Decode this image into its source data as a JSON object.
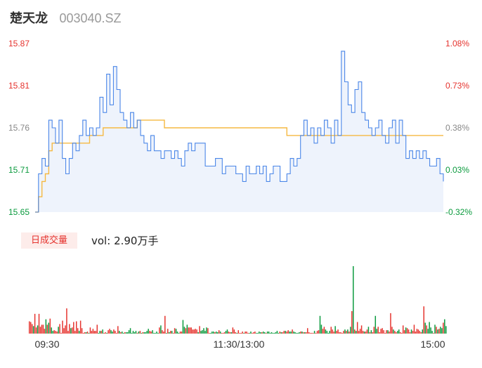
{
  "header": {
    "stock_name": "楚天龙",
    "stock_code": "003040.SZ"
  },
  "volume_panel": {
    "tag_label": "日成交量",
    "vol_prefix": "vol:",
    "vol_value": "2.90万手"
  },
  "colors": {
    "price_line": "#4a86e8",
    "price_fill": "#eef3fc",
    "avg_line": "#f5b942",
    "up": "#e5322d",
    "down": "#0a9a3d",
    "flat": "#888888"
  },
  "chart_data": {
    "type": "line",
    "title": "",
    "xlabel": "",
    "ylabel": "",
    "ylim": [
      15.65,
      15.87
    ],
    "y_right_ticks": [
      "1.08%",
      "0.73%",
      "0.38%",
      "0.03%",
      "-0.32%"
    ],
    "y_left_ticks": [
      "15.87",
      "15.81",
      "15.76",
      "15.71",
      "15.65"
    ],
    "x_ticks": [
      "09:30",
      "11:30/13:00",
      "15:00"
    ],
    "prev_close": 15.705,
    "x": [
      0,
      2,
      4,
      6,
      8,
      10,
      12,
      14,
      16,
      18,
      20,
      22,
      24,
      26,
      28,
      30,
      32,
      34,
      36,
      38,
      40,
      42,
      44,
      46,
      48,
      50,
      52,
      54,
      56,
      58,
      60,
      62,
      64,
      66,
      68,
      70,
      72,
      74,
      76,
      78,
      80,
      82,
      84,
      86,
      88,
      90,
      92,
      94,
      96,
      98,
      100,
      102,
      104,
      106,
      108,
      110,
      112,
      114,
      116,
      118,
      120,
      122,
      124,
      126,
      128,
      130,
      132,
      134,
      136,
      138,
      140,
      142,
      144,
      146,
      148,
      150,
      152,
      154,
      156,
      158,
      160,
      162,
      164,
      166,
      168,
      170,
      172,
      174,
      176,
      178,
      180,
      182,
      184,
      186,
      188,
      190,
      192,
      194,
      196,
      198,
      200,
      202,
      204,
      206,
      208,
      210,
      212,
      214,
      216,
      218,
      220,
      222,
      224,
      226,
      228,
      230,
      232,
      234,
      236,
      238,
      240
    ],
    "series": [
      {
        "values": [
          15.65,
          15.7,
          15.72,
          15.71,
          15.77,
          15.76,
          15.74,
          15.77,
          15.72,
          15.7,
          15.72,
          15.74,
          15.73,
          15.75,
          15.77,
          15.75,
          15.76,
          15.75,
          15.76,
          15.8,
          15.78,
          15.83,
          15.79,
          15.84,
          15.81,
          15.78,
          15.77,
          15.76,
          15.78,
          15.76,
          15.77,
          15.75,
          15.74,
          15.73,
          15.75,
          15.73,
          15.73,
          15.72,
          15.73,
          15.73,
          15.72,
          15.73,
          15.72,
          15.71,
          15.73,
          15.74,
          15.73,
          15.74,
          15.74,
          15.74,
          15.71,
          15.71,
          15.71,
          15.72,
          15.72,
          15.7,
          15.71,
          15.71,
          15.71,
          15.7,
          15.7,
          15.69,
          15.71,
          15.7,
          15.7,
          15.71,
          15.7,
          15.71,
          15.69,
          15.7,
          15.71,
          15.71,
          15.69,
          15.69,
          15.7,
          15.72,
          15.71,
          15.72,
          15.75,
          15.77,
          15.75,
          15.76,
          15.74,
          15.76,
          15.75,
          15.77,
          15.76,
          15.74,
          15.77,
          15.75,
          15.86,
          15.82,
          15.79,
          15.78,
          15.81,
          15.82,
          15.78,
          15.77,
          15.76,
          15.75,
          15.76,
          15.77,
          15.75,
          15.74,
          15.76,
          15.77,
          15.74,
          15.77,
          15.75,
          15.72,
          15.73,
          15.72,
          15.73,
          15.72,
          15.73,
          15.72,
          15.71,
          15.71,
          15.72,
          15.7,
          15.69
        ]
      },
      {
        "values": [
          15.65,
          15.67,
          15.69,
          15.7,
          15.73,
          15.74,
          15.74,
          15.74,
          15.74,
          15.74,
          15.74,
          15.74,
          15.74,
          15.74,
          15.74,
          15.74,
          15.75,
          15.75,
          15.75,
          15.75,
          15.76,
          15.76,
          15.76,
          15.76,
          15.76,
          15.76,
          15.76,
          15.76,
          15.76,
          15.76,
          15.77,
          15.77,
          15.77,
          15.77,
          15.77,
          15.77,
          15.77,
          15.77,
          15.76,
          15.76,
          15.76,
          15.76,
          15.76,
          15.76,
          15.76,
          15.76,
          15.76,
          15.76,
          15.76,
          15.76,
          15.76,
          15.76,
          15.76,
          15.76,
          15.76,
          15.76,
          15.76,
          15.76,
          15.76,
          15.76,
          15.76,
          15.76,
          15.76,
          15.76,
          15.76,
          15.76,
          15.76,
          15.76,
          15.76,
          15.76,
          15.76,
          15.76,
          15.76,
          15.76,
          15.75,
          15.75,
          15.75,
          15.75,
          15.75,
          15.75,
          15.75,
          15.75,
          15.75,
          15.75,
          15.75,
          15.75,
          15.75,
          15.75,
          15.75,
          15.75,
          15.75,
          15.75,
          15.75,
          15.75,
          15.75,
          15.75,
          15.75,
          15.75,
          15.75,
          15.75,
          15.75,
          15.75,
          15.75,
          15.75,
          15.75,
          15.75,
          15.75,
          15.75,
          15.75,
          15.75,
          15.75,
          15.75,
          15.75,
          15.75,
          15.75,
          15.75,
          15.75,
          15.75,
          15.75,
          15.75,
          15.75
        ]
      }
    ],
    "volume": {
      "ylim": [
        0,
        100
      ],
      "values": [
        18,
        17,
        14,
        11,
        29,
        9,
        12,
        29,
        10,
        13,
        13,
        7,
        21,
        13,
        16,
        22,
        9,
        4,
        5,
        4,
        3,
        10,
        14,
        1,
        19,
        8,
        12,
        37,
        4,
        14,
        8,
        9,
        17,
        4,
        18,
        8,
        4,
        19,
        8,
        1,
        2,
        2,
        3,
        1,
        9,
        4,
        7,
        4,
        4,
        13,
        1,
        4,
        4,
        6,
        1,
        2,
        1,
        5,
        7,
        5,
        3,
        6,
        4,
        1,
        11,
        4,
        2,
        3,
        1,
        2,
        2,
        2,
        5,
        8,
        1,
        4,
        2,
        4,
        1,
        3,
        4,
        1,
        2,
        2,
        2,
        4,
        7,
        4,
        3,
        5,
        1,
        1,
        3,
        1,
        9,
        12,
        5,
        3,
        26,
        1,
        7,
        2,
        4,
        4,
        1,
        8,
        7,
        3,
        1,
        3,
        3,
        20,
        10,
        8,
        13,
        9,
        9,
        9,
        6,
        6,
        7,
        6,
        2,
        11,
        4,
        5,
        8,
        4,
        9,
        8,
        1,
        1,
        3,
        3,
        2,
        3,
        2,
        5,
        3,
        1,
        1,
        2,
        4,
        6,
        3,
        2,
        2,
        9,
        6,
        2,
        1,
        5,
        1,
        1,
        3,
        1,
        3,
        3,
        1,
        1,
        3,
        1,
        2,
        3,
        1,
        1,
        3,
        2,
        2,
        3,
        2,
        1,
        3,
        3,
        1,
        2,
        1,
        1,
        2,
        4,
        1,
        3,
        2,
        2,
        4,
        4,
        3,
        5,
        3,
        3,
        6,
        3,
        2,
        1,
        1,
        2,
        3,
        3,
        2,
        2,
        2,
        8,
        2,
        1,
        1,
        1,
        4,
        1,
        4,
        5,
        26,
        13,
        7,
        10,
        6,
        4,
        1,
        4,
        10,
        6,
        3,
        11,
        4,
        6,
        2,
        2,
        1,
        4,
        6,
        4,
        6,
        3,
        10,
        33,
        99,
        6,
        4,
        17,
        4,
        7,
        12,
        4,
        3,
        3,
        6,
        10,
        2,
        5,
        2,
        10,
        26,
        7,
        10,
        2,
        7,
        8,
        5,
        1,
        5,
        5,
        3,
        30,
        10,
        6,
        4,
        2,
        4,
        6,
        2,
        1,
        12,
        5,
        9,
        8,
        6,
        2,
        6,
        4,
        13,
        3,
        7,
        6,
        4,
        2,
        6,
        40,
        16,
        12,
        7,
        17,
        9,
        4,
        1,
        13,
        10,
        6,
        7,
        10,
        8,
        16,
        21,
        11
      ],
      "directions": [
        "up",
        "up",
        "up",
        "down",
        "up",
        "up",
        "down",
        "up",
        "up",
        "up",
        "up",
        "up",
        "down",
        "up",
        "down",
        "up",
        "down",
        "down",
        "up",
        "up",
        "up",
        "down",
        "up",
        "up",
        "up",
        "up",
        "up",
        "up",
        "up",
        "up",
        "down",
        "up",
        "up",
        "up",
        "up",
        "up",
        "down",
        "up",
        "up",
        "up",
        "up",
        "down",
        "up",
        "down",
        "up",
        "up",
        "up",
        "up",
        "up",
        "up",
        "down",
        "down",
        "up",
        "down",
        "up",
        "up",
        "down",
        "up",
        "up",
        "down",
        "down",
        "up",
        "up",
        "up",
        "up",
        "down",
        "up",
        "down",
        "down",
        "up",
        "down",
        "down",
        "down",
        "down",
        "down",
        "down",
        "down",
        "down",
        "up",
        "down",
        "up",
        "down",
        "up",
        "down",
        "down",
        "down",
        "down",
        "up",
        "up",
        "down",
        "down",
        "down",
        "down",
        "down",
        "up",
        "down",
        "up",
        "up",
        "up",
        "down",
        "up",
        "down",
        "up",
        "down",
        "up",
        "up",
        "down",
        "down",
        "down",
        "up",
        "up",
        "down",
        "down",
        "up",
        "down",
        "up",
        "up",
        "up",
        "up",
        "up",
        "up",
        "up",
        "down",
        "up",
        "down",
        "down",
        "down",
        "down",
        "down",
        "up",
        "up",
        "down",
        "down",
        "down",
        "up",
        "down",
        "down",
        "up",
        "down",
        "up",
        "up",
        "up",
        "down",
        "down",
        "up",
        "up",
        "down",
        "up",
        "up",
        "up",
        "down",
        "up",
        "up",
        "up",
        "up",
        "down",
        "up",
        "up",
        "up",
        "down",
        "down",
        "up",
        "up",
        "up",
        "down",
        "down",
        "down",
        "down",
        "up",
        "down",
        "down",
        "up",
        "down",
        "down",
        "down",
        "down",
        "down",
        "down",
        "down",
        "down",
        "down",
        "up",
        "down",
        "up",
        "up",
        "down",
        "up",
        "up",
        "down",
        "down",
        "up",
        "down",
        "down",
        "down",
        "down",
        "down",
        "up",
        "down",
        "up",
        "down",
        "up",
        "up",
        "up",
        "up",
        "up",
        "up",
        "down",
        "up",
        "up",
        "up",
        "down",
        "down",
        "up",
        "up",
        "down",
        "down",
        "down",
        "down",
        "up",
        "up",
        "up",
        "down",
        "up",
        "up",
        "up",
        "up",
        "up",
        "up",
        "down",
        "up",
        "down",
        "up",
        "down",
        "up",
        "down",
        "up",
        "down",
        "up",
        "up",
        "up",
        "up",
        "up",
        "down",
        "up",
        "up",
        "down",
        "up",
        "down",
        "up",
        "up",
        "down",
        "down",
        "up",
        "up",
        "up",
        "up",
        "up",
        "up",
        "up",
        "down",
        "up",
        "up",
        "up",
        "down",
        "up",
        "up",
        "down",
        "down",
        "up",
        "up",
        "up",
        "up",
        "down",
        "up",
        "up",
        "up",
        "down",
        "up",
        "up",
        "up",
        "up",
        "up",
        "up",
        "up",
        "down",
        "up",
        "down",
        "up",
        "down",
        "down",
        "down",
        "down",
        "up",
        "down",
        "up",
        "down",
        "up",
        "down",
        "down",
        "up"
      ]
    }
  }
}
